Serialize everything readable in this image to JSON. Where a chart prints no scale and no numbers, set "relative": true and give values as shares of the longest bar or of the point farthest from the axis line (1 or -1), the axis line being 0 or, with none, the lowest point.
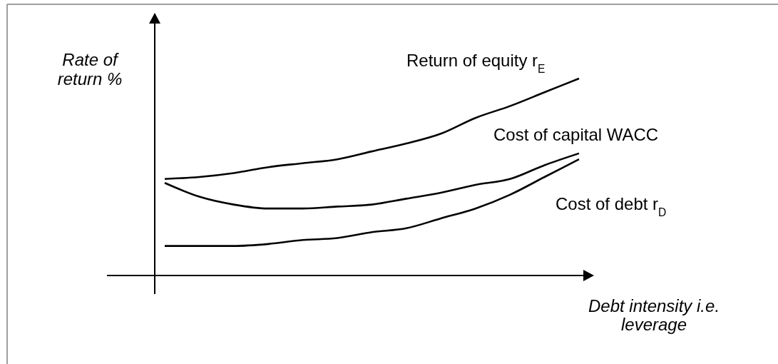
{
  "chart_data": {
    "type": "line",
    "relative": true,
    "xlabel": "Debt intensity i.e. leverage",
    "ylabel": "Rate of return %",
    "categories": [
      null,
      null,
      null,
      null,
      null,
      null,
      null,
      null,
      null,
      null,
      null,
      null,
      null
    ],
    "series": [
      {
        "name": "Return of equity r$_{E}$",
        "color": "#000000",
        "values": [
          0.49,
          0.5,
          0.52,
          0.55,
          0.57,
          0.59,
          0.63,
          0.67,
          0.72,
          0.8,
          0.86,
          0.93,
          1
        ]
      },
      {
        "name": "Cost of capital WACC",
        "color": "#000000",
        "values": [
          0.47,
          0.4,
          0.36,
          0.34,
          0.34,
          0.35,
          0.36,
          0.39,
          0.42,
          0.46,
          0.49,
          0.56,
          0.62
        ]
      },
      {
        "name": "Cost of debt r$_{D}$",
        "color": "#000000",
        "values": [
          0.15,
          0.15,
          0.15,
          0.16,
          0.18,
          0.19,
          0.22,
          0.24,
          0.29,
          0.34,
          0.41,
          0.5,
          0.59
        ]
      }
    ]
  }
}
